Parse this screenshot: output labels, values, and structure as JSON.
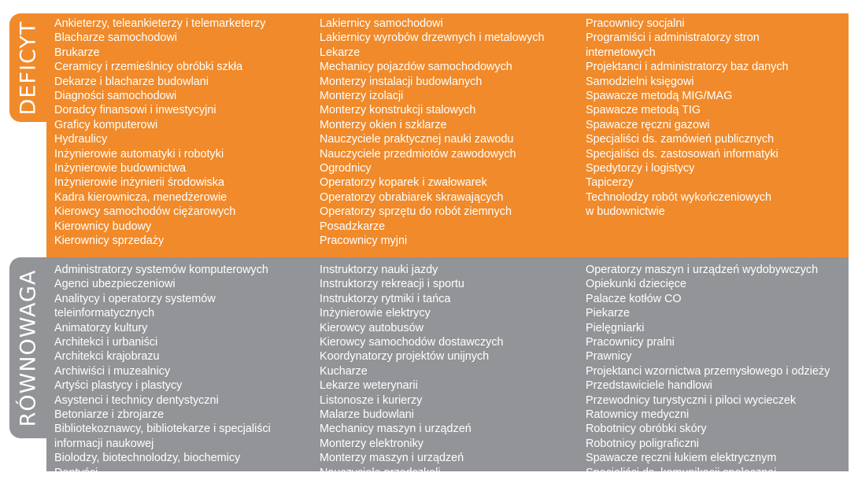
{
  "sections": [
    {
      "label": "DEFICYT",
      "color": "#f08a2a",
      "columns": [
        [
          "Ankieterzy, teleankieterzy i telemarketerzy",
          "Blacharze samochodowi",
          "Brukarze",
          "Ceramicy i rzemieślnicy obróbki szkła",
          "Dekarze i blacharze budowlani",
          "Diagności samochodowi",
          "Doradcy finansowi i inwestycyjni",
          "Graficy komputerowi",
          "Hydraulicy",
          "Inżynierowie automatyki i robotyki",
          "Inżynierowie budownictwa",
          "Inżynierowie inżynierii środowiska",
          "Kadra kierownicza, menedżerowie",
          "Kierowcy samochodów ciężarowych",
          "Kierownicy budowy",
          "Kierownicy sprzedaży"
        ],
        [
          "Lakiernicy samochodowi",
          "Lakiernicy wyrobów drzewnych i metalowych",
          "Lekarze",
          "Mechanicy pojazdów samochodowych",
          "Monterzy instalacji budowlanych",
          "Monterzy izolacji",
          "Monterzy konstrukcji stalowych",
          "Monterzy okien i szklarze",
          "Nauczyciele praktycznej nauki zawodu",
          "Nauczyciele przedmiotów zawodowych",
          "Ogrodnicy",
          "Operatorzy koparek i zwałowarek",
          "Operatorzy obrabiarek skrawających",
          "Operatorzy sprzętu do robót ziemnych",
          "Posadzkarze",
          "Pracownicy myjni"
        ],
        [
          "Pracownicy socjalni",
          "Programiści i administratorzy stron",
          "internetowych",
          "Projektanci i administratorzy baz danych",
          "Samodzielni księgowi",
          "Spawacze metodą MIG/MAG",
          "Spawacze metodą TIG",
          "Spawacze ręczni gazowi",
          "Specjaliści ds. zamówień publicznych",
          "Specjaliści ds. zastosowań informatyki",
          "Spedytorzy i logistycy",
          "Tapicerzy",
          "Technolodzy robót wykończeniowych",
          "w budownictwie"
        ]
      ]
    },
    {
      "label": "RÓWNOWAGA",
      "color": "#929497",
      "columns": [
        [
          "Administratorzy systemów komputerowych",
          "Agenci ubezpieczeniowi",
          "Analitycy i operatorzy systemów",
          "teleinformatycznych",
          "Animatorzy kultury",
          "Architekci i urbaniści",
          "Architekci krajobrazu",
          "Archiwiści i muzealnicy",
          "Artyści plastycy i plastycy",
          "Asystenci i technicy dentystyczni",
          "Betoniarze i zbrojarze",
          "Bibliotekoznawcy, bibliotekarze i specjaliści",
          "informacji naukowej",
          "Biolodzy, biotechnolodzy, biochemicy",
          "Dentyści"
        ],
        [
          "Instruktorzy nauki jazdy",
          "Instruktorzy rekreacji i sportu",
          "Instruktorzy rytmiki i tańca",
          "Inżynierowie elektrycy",
          "Kierowcy autobusów",
          "Kierowcy samochodów dostawczych",
          "Koordynatorzy projektów unijnych",
          "Kucharze",
          "Lekarze weterynarii",
          "Listonosze i kurierzy",
          "Malarze budowlani",
          "Mechanicy maszyn i urządzeń",
          "Monterzy elektroniky",
          "Monterzy maszyn i urządzeń",
          "Nauczyciele przedszkoli"
        ],
        [
          "Operatorzy maszyn i urządzeń wydobywczych",
          "Opiekunki dziecięce",
          "Palacze kotłów CO",
          "Piekarze",
          "Pielęgniarki",
          "Pracownicy pralni",
          "Prawnicy",
          "Projektanci wzornictwa przemysłowego i odzieży",
          "Przedstawiciele handlowi",
          "Przewodnicy turystyczni i piloci wycieczek",
          "Ratownicy medyczni",
          "Robotnicy obróbki skóry",
          "Robotnicy poligraficzni",
          "Spawacze ręczni łukiem elektrycznym",
          "Specjaliści ds. komunikacji społecznej"
        ]
      ]
    }
  ]
}
